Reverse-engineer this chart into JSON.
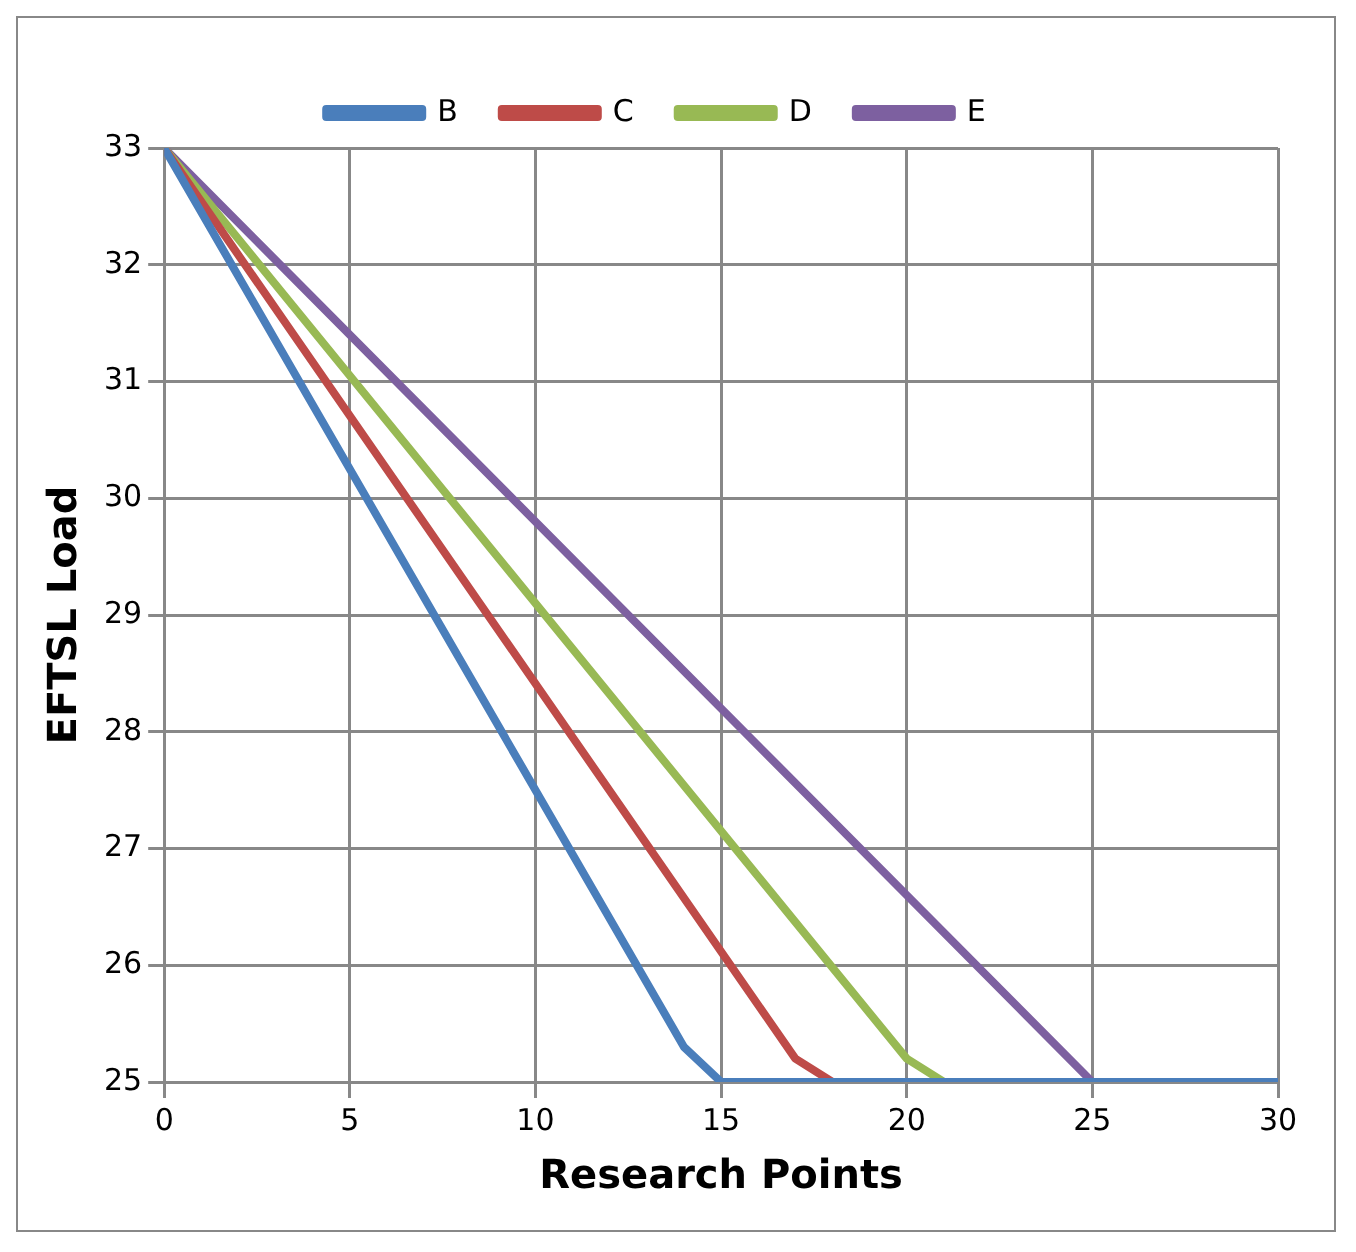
{
  "chart_data": {
    "type": "line",
    "xlabel": "Research Points",
    "ylabel": "EFTSL Load",
    "series": [
      {
        "name": "B",
        "color": "#4a7ebb",
        "x": [
          0,
          14,
          15,
          30
        ],
        "values": [
          33,
          25.3,
          25,
          25
        ]
      },
      {
        "name": "C",
        "color": "#be4b48",
        "x": [
          0,
          17,
          18,
          30
        ],
        "values": [
          33,
          25.2,
          25,
          25
        ]
      },
      {
        "name": "D",
        "color": "#98b954",
        "x": [
          0,
          20,
          21,
          30
        ],
        "values": [
          33,
          25.2,
          25,
          25
        ]
      },
      {
        "name": "E",
        "color": "#7d60a0",
        "x": [
          0,
          25,
          30
        ],
        "values": [
          33,
          25,
          25
        ]
      }
    ],
    "xlim": [
      0,
      30
    ],
    "xticks": [
      0,
      5,
      10,
      15,
      20,
      25,
      30
    ],
    "ylim": [
      25,
      33
    ],
    "yticks": [
      25,
      26,
      27,
      28,
      29,
      30,
      31,
      32,
      33
    ],
    "grid": true,
    "legend": "top",
    "marker": "none",
    "line_style": "solid"
  }
}
